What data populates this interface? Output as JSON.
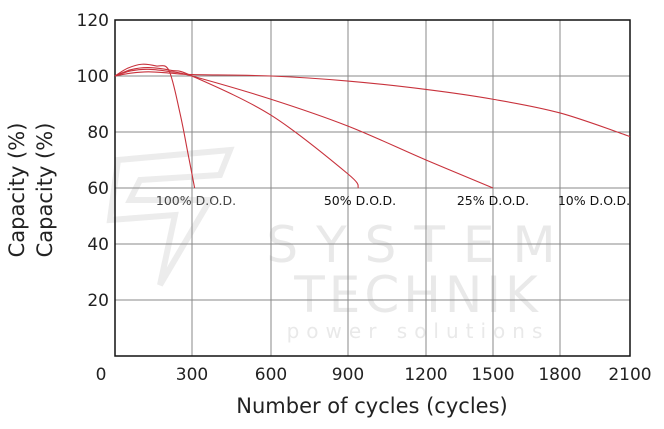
{
  "chart_data": {
    "type": "line",
    "title": "",
    "xlabel": "Number of cycles (cycles)",
    "ylabel": "Capacity (%)",
    "ylabel_overlap": "Capacity (%)",
    "xlim": [
      0,
      2100
    ],
    "ylim": [
      0,
      120
    ],
    "x_ticks": [
      "0",
      "300",
      "600",
      "900",
      "1200",
      "1500",
      "1800",
      "2100"
    ],
    "y_ticks": [
      "20",
      "40",
      "60",
      "80",
      "100",
      "120"
    ],
    "grid": true,
    "line_color": "#c8323c",
    "series": [
      {
        "name": "100% D.O.D.",
        "x": [
          0,
          50,
          105,
          160,
          210,
          253,
          285,
          310
        ],
        "y": [
          100,
          102.8,
          104.2,
          103.6,
          102,
          86.8,
          72,
          60
        ]
      },
      {
        "name": "50% D.O.D.",
        "x": [
          0,
          60,
          130,
          220,
          300,
          600,
          900,
          940
        ],
        "y": [
          100,
          102.2,
          103,
          102,
          100,
          86,
          65,
          60
        ]
      },
      {
        "name": "25% D.O.D.",
        "x": [
          0,
          60,
          130,
          220,
          300,
          600,
          900,
          1200,
          1500
        ],
        "y": [
          100,
          101.8,
          102.4,
          101.5,
          100,
          91.7,
          82.1,
          70,
          60
        ]
      },
      {
        "name": "10% D.O.D.",
        "x": [
          0,
          60,
          130,
          220,
          300,
          600,
          900,
          1200,
          1500,
          1800,
          2100
        ],
        "y": [
          100,
          101,
          101.5,
          101,
          100.5,
          100,
          98.2,
          95.2,
          91.7,
          86.8,
          78.4
        ]
      }
    ]
  },
  "watermark": {
    "line1": "SYSTEM",
    "line2": "TECHNIK",
    "line3": "power solutions"
  }
}
